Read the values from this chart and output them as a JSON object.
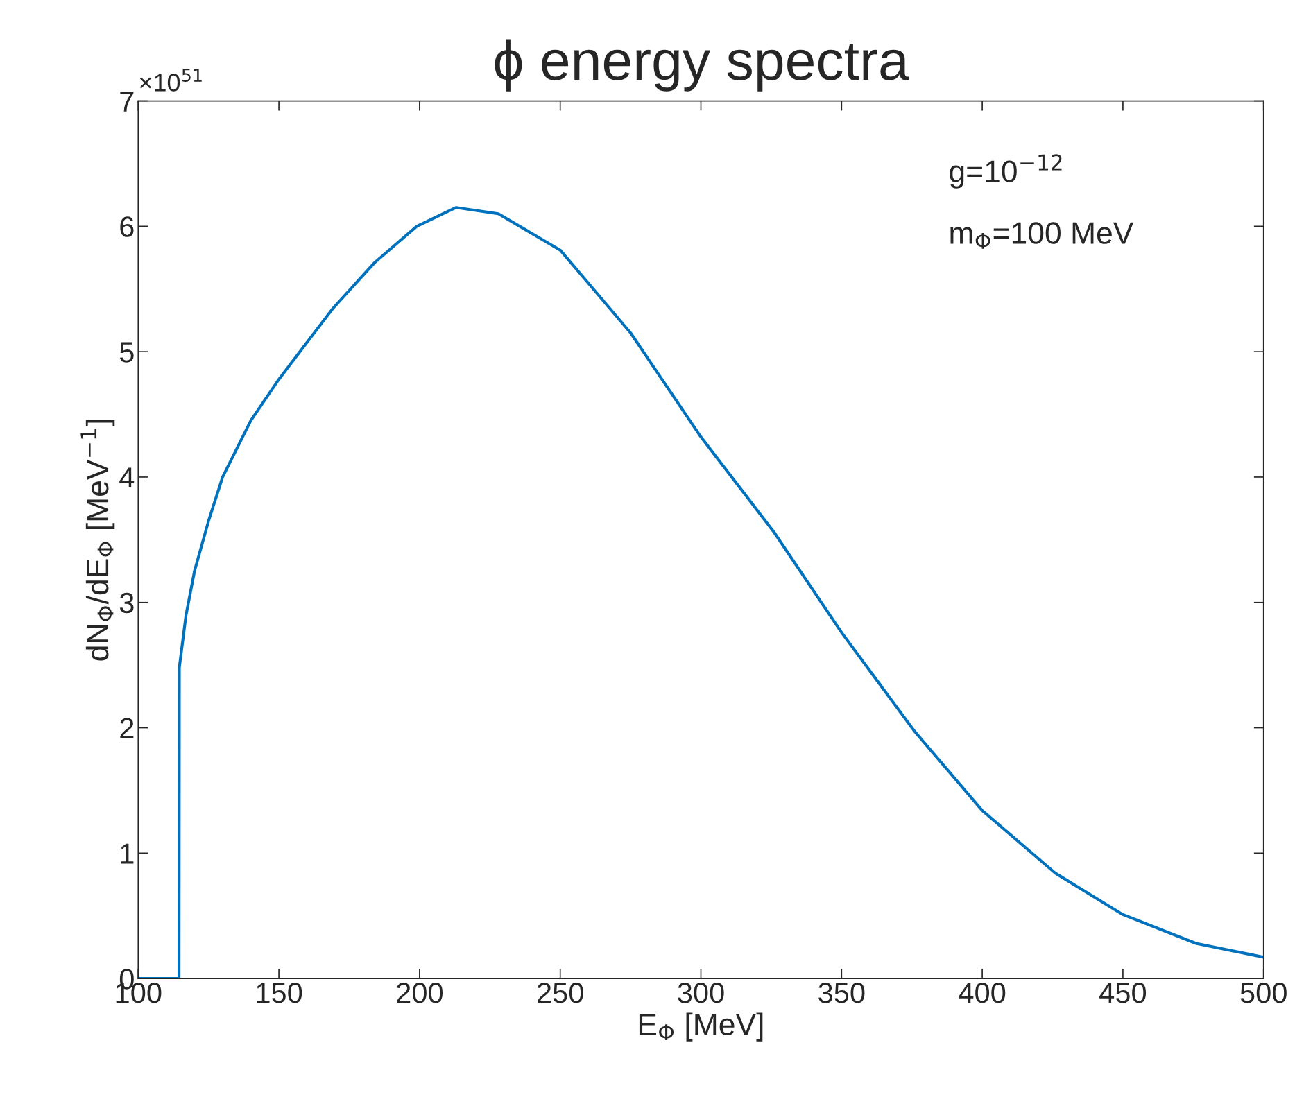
{
  "chart_data": {
    "type": "line",
    "title": "ϕ energy spectra",
    "xlabel": "E$_{Φ}$ [MeV]",
    "ylabel": "dN$_{Φ}$/dE$_{Φ}$ [MeV$^{−1}$]",
    "annotations": [
      "×10$^{51}$",
      "g=10$^{−12}$",
      "m$_{Φ}$=100 MeV"
    ],
    "series": [
      {
        "color": "#0072bd",
        "x": [
          100,
          114.5,
          114.6,
          117,
          120,
          125,
          130,
          140,
          150,
          169,
          184,
          199,
          213,
          228,
          250,
          275,
          300,
          326,
          350,
          376,
          400,
          426,
          450,
          476,
          500
        ],
        "values": [
          0,
          0,
          2.48,
          2.9,
          3.25,
          3.65,
          4.0,
          4.45,
          4.78,
          5.34,
          5.71,
          6.0,
          6.15,
          6.1,
          5.81,
          5.15,
          4.32,
          3.56,
          2.76,
          1.97,
          1.34,
          0.84,
          0.51,
          0.28,
          0.17
        ]
      }
    ],
    "xlim": [
      100,
      500
    ],
    "xticks": [
      100,
      150,
      200,
      250,
      300,
      350,
      400,
      450,
      500
    ],
    "ylim": [
      0,
      7
    ],
    "yticks": [
      0,
      1,
      2,
      3,
      4,
      5,
      6,
      7
    ],
    "grid": false,
    "legend": false
  }
}
